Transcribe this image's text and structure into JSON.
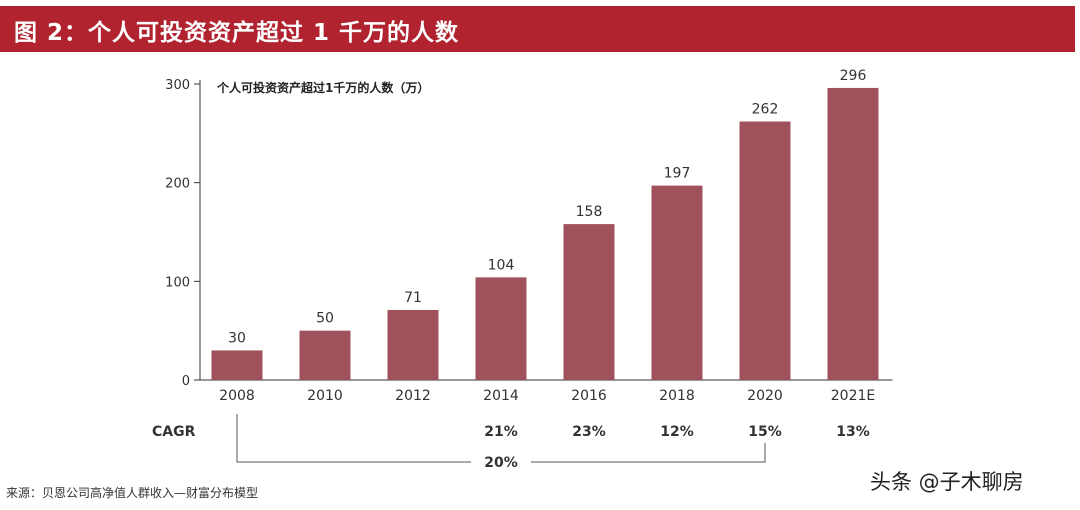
{
  "header": {
    "title": "图 2：个人可投资资产超过 1 千万的人数"
  },
  "chart_data": {
    "type": "bar",
    "title": "个人可投资资产超过1千万的人数（万）",
    "categories": [
      "2008",
      "2010",
      "2012",
      "2014",
      "2016",
      "2018",
      "2020",
      "2021E"
    ],
    "values": [
      30,
      50,
      71,
      104,
      158,
      197,
      262,
      296
    ],
    "y_ticks": [
      "0",
      "100",
      "200",
      "300"
    ],
    "ylim": [
      0,
      300
    ],
    "bar_color": "#a0525c",
    "cagr": {
      "label": "CAGR",
      "values": [
        "",
        "",
        "",
        "21%",
        "23%",
        "12%",
        "15%",
        "13%"
      ],
      "overall": "20%"
    }
  },
  "source": "来源：贝恩公司高净值人群收入—财富分布模型",
  "credit": "头条 @子木聊房"
}
